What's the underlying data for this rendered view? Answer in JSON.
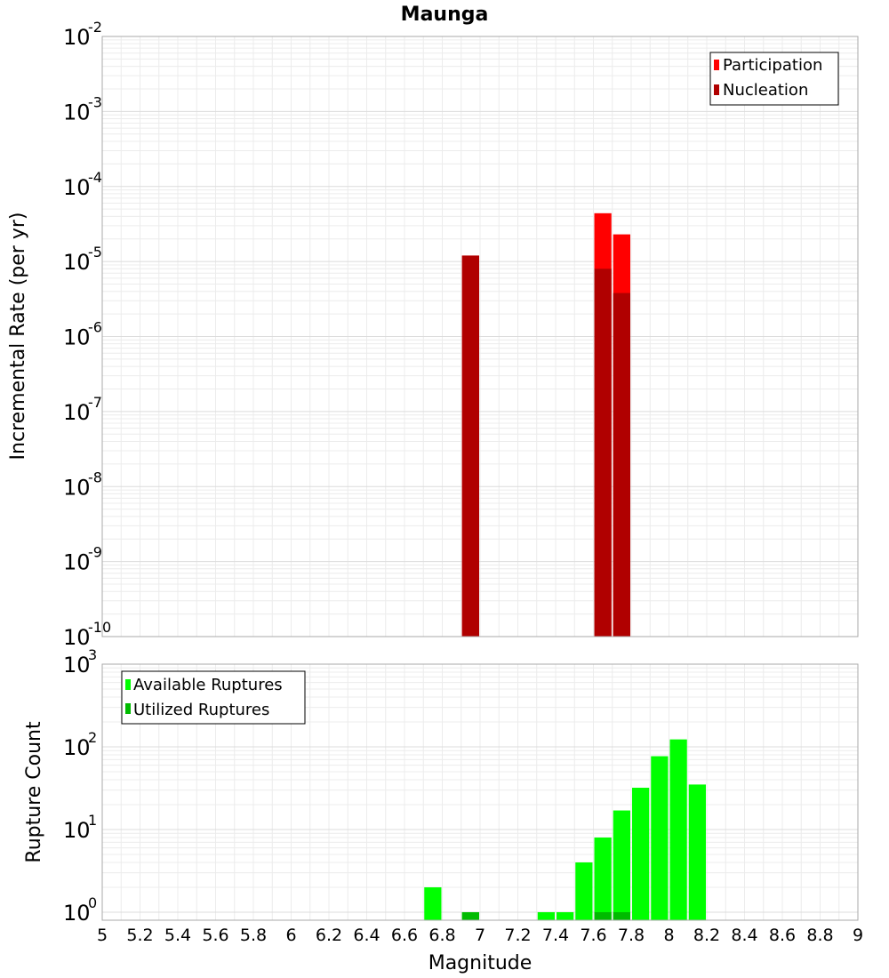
{
  "chart_data": [
    {
      "type": "bar",
      "title": "Maunga",
      "ylabel": "Incremental Rate (per yr)",
      "xlabel": "",
      "xlim": [
        5,
        9
      ],
      "ylim": [
        1e-10,
        0.01
      ],
      "yscale": "log",
      "bin_width": 0.1,
      "grid": true,
      "legend_position": "top-right",
      "series": [
        {
          "name": "Participation",
          "color": "#ff0000",
          "points": [
            {
              "x": 6.95,
              "y": 1.2e-05
            },
            {
              "x": 7.65,
              "y": 4.4e-05
            },
            {
              "x": 7.75,
              "y": 2.3e-05
            }
          ]
        },
        {
          "name": "Nucleation",
          "color": "#b00000",
          "points": [
            {
              "x": 6.95,
              "y": 1.2e-05
            },
            {
              "x": 7.65,
              "y": 8e-06
            },
            {
              "x": 7.75,
              "y": 3.8e-06
            }
          ]
        }
      ]
    },
    {
      "type": "bar",
      "title": "",
      "ylabel": "Rupture Count",
      "xlabel": "Magnitude",
      "xlim": [
        5,
        9
      ],
      "ylim": [
        0.8,
        1000
      ],
      "yscale": "log",
      "bin_width": 0.1,
      "grid": true,
      "legend_position": "top-left",
      "xticks": [
        "5",
        "5.2",
        "5.4",
        "5.6",
        "5.8",
        "6",
        "6.2",
        "6.4",
        "6.6",
        "6.8",
        "7",
        "7.2",
        "7.4",
        "7.6",
        "7.8",
        "8",
        "8.2",
        "8.4",
        "8.6",
        "8.8",
        "9"
      ],
      "series": [
        {
          "name": "Available Ruptures",
          "color": "#00ff00",
          "points": [
            {
              "x": 6.75,
              "y": 2
            },
            {
              "x": 6.95,
              "y": 1
            },
            {
              "x": 7.35,
              "y": 1
            },
            {
              "x": 7.45,
              "y": 1
            },
            {
              "x": 7.55,
              "y": 4
            },
            {
              "x": 7.65,
              "y": 8
            },
            {
              "x": 7.75,
              "y": 17
            },
            {
              "x": 7.85,
              "y": 32
            },
            {
              "x": 7.95,
              "y": 77
            },
            {
              "x": 8.05,
              "y": 123
            },
            {
              "x": 8.15,
              "y": 35
            }
          ]
        },
        {
          "name": "Utilized Ruptures",
          "color": "#00bb00",
          "points": [
            {
              "x": 6.95,
              "y": 1
            },
            {
              "x": 7.65,
              "y": 1
            },
            {
              "x": 7.75,
              "y": 1
            }
          ]
        }
      ]
    }
  ]
}
